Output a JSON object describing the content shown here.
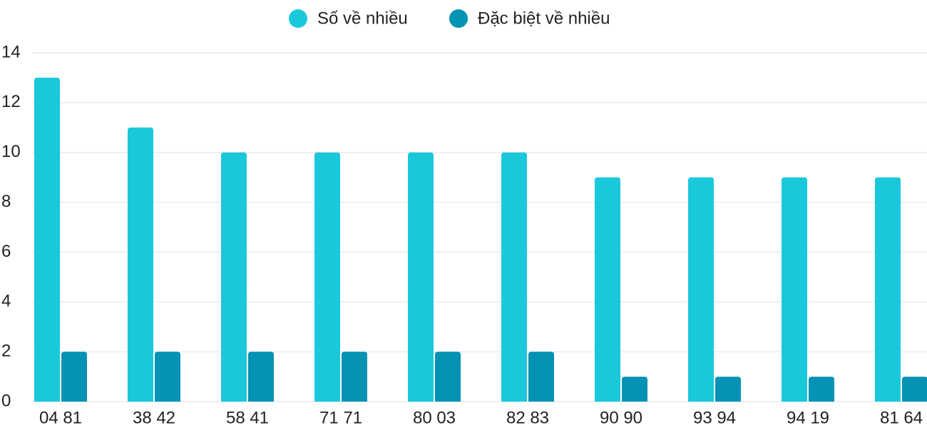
{
  "chart_data": {
    "type": "bar",
    "categories": [
      "04 81",
      "38 42",
      "58 41",
      "71 71",
      "80 03",
      "82 83",
      "90 90",
      "93 94",
      "94 19",
      "81 64"
    ],
    "series": [
      {
        "name": "Số về nhiều",
        "color": "#1ac8db",
        "values": [
          13,
          11,
          10,
          10,
          10,
          10,
          9,
          9,
          9,
          9
        ]
      },
      {
        "name": "Đặc biệt về nhiều",
        "color": "#0492b5",
        "values": [
          2,
          2,
          2,
          2,
          2,
          2,
          1,
          1,
          1,
          1
        ]
      }
    ],
    "ylim": [
      0,
      14
    ],
    "yticks": [
      0,
      2,
      4,
      6,
      8,
      10,
      12,
      14
    ],
    "grid": true
  }
}
